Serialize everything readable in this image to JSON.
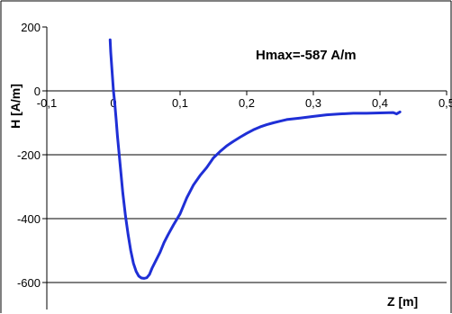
{
  "chart_data": {
    "type": "line",
    "title": "",
    "xlabel": "Z [m]",
    "ylabel": "H [A/m]",
    "xlim": [
      -0.1,
      0.5
    ],
    "ylim": [
      -600,
      200
    ],
    "grid": "horizontal",
    "legend": "none",
    "x_ticks": [
      "-0,1",
      "0",
      "0,1",
      "0,2",
      "0,3",
      "0,4",
      "0,5"
    ],
    "y_ticks": [
      "200",
      "0",
      "-200",
      "-400",
      "-600"
    ],
    "annotation": "Hmax=-587 A/m",
    "colors": {
      "line": "#1f2fd6",
      "frame": "#000000",
      "grid": "#000000",
      "background": "#ffffff"
    },
    "series": [
      {
        "x": [
          -0.005,
          -0.004,
          -0.002,
          0.0,
          0.002,
          0.004,
          0.006,
          0.01,
          0.014,
          0.018,
          0.022,
          0.026,
          0.03,
          0.034,
          0.038,
          0.042,
          0.046,
          0.05,
          0.054,
          0.058,
          0.064,
          0.07,
          0.076,
          0.082,
          0.09,
          0.1,
          0.11,
          0.12,
          0.13,
          0.14,
          0.15,
          0.16,
          0.17,
          0.18,
          0.19,
          0.2,
          0.21,
          0.22,
          0.23,
          0.24,
          0.25,
          0.26,
          0.28,
          0.3,
          0.32,
          0.34,
          0.36,
          0.38,
          0.4,
          0.42,
          0.425,
          0.43
        ],
        "y": [
          160,
          120,
          60,
          0,
          -40,
          -90,
          -140,
          -230,
          -320,
          -390,
          -450,
          -500,
          -540,
          -565,
          -580,
          -586,
          -587,
          -585,
          -575,
          -555,
          -530,
          -505,
          -475,
          -450,
          -420,
          -385,
          -335,
          -295,
          -265,
          -240,
          -210,
          -190,
          -172,
          -158,
          -145,
          -133,
          -122,
          -113,
          -106,
          -100,
          -95,
          -90,
          -85,
          -80,
          -75,
          -72,
          -70,
          -70,
          -69,
          -68,
          -72,
          -66
        ]
      }
    ]
  }
}
